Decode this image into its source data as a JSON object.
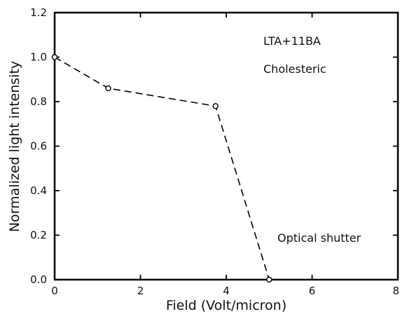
{
  "chart_data": {
    "type": "line",
    "xlabel": "Field (Volt/micron)",
    "ylabel": "Normalized light intensity",
    "xlim": [
      0,
      8
    ],
    "ylim": [
      0,
      1.2
    ],
    "x_ticks": [
      0,
      2,
      4,
      6,
      8
    ],
    "y_ticks": [
      0.0,
      0.2,
      0.4,
      0.6,
      0.8,
      1.0,
      1.2
    ],
    "x_tick_labels": [
      "0",
      "2",
      "4",
      "6",
      "8"
    ],
    "y_tick_labels": [
      "0.0",
      "0.2",
      "0.4",
      "0.6",
      "0.8",
      "1.0",
      "1.2"
    ],
    "grid": false,
    "series": [
      {
        "x": [
          0,
          1.25,
          3.75,
          5.0
        ],
        "y": [
          1.0,
          0.86,
          0.78,
          0.0
        ],
        "line_style": "dashed",
        "marker": "open-circle",
        "color": "#000000"
      }
    ],
    "annotations": [
      "LTA+11BA",
      "Cholesteric",
      "Optical shutter"
    ]
  }
}
